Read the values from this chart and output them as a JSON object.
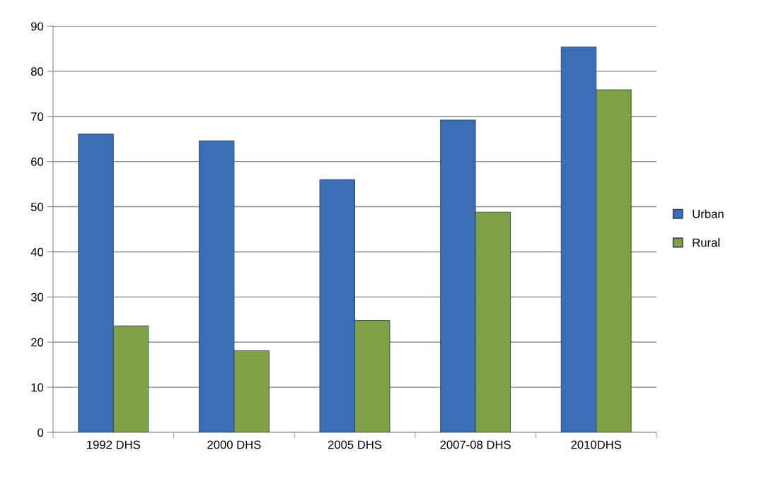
{
  "chart_data": {
    "type": "bar",
    "categories": [
      "1992 DHS",
      "2000 DHS",
      "2005 DHS",
      "2007-08 DHS",
      "2010DHS"
    ],
    "series": [
      {
        "name": "Urban",
        "color": "#3a6fb5",
        "values": [
          66.1,
          64.6,
          56.0,
          69.2,
          85.4
        ]
      },
      {
        "name": "Rural",
        "color": "#81a045",
        "values": [
          23.6,
          18.1,
          24.8,
          48.8,
          75.9
        ]
      }
    ],
    "ylim": [
      0,
      90
    ],
    "yticks": [
      0,
      10,
      20,
      30,
      40,
      50,
      60,
      70,
      80,
      90
    ],
    "grid": "y",
    "legend": "right"
  }
}
